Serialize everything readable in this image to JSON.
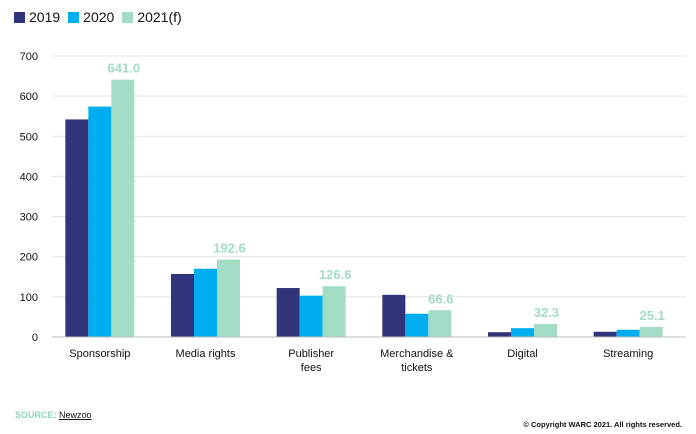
{
  "chart_data": {
    "type": "bar",
    "categories": [
      [
        "Sponsorship"
      ],
      [
        "Media rights"
      ],
      [
        "Publisher",
        "fees"
      ],
      [
        "Merchandise &",
        "tickets"
      ],
      [
        "Digital"
      ],
      [
        "Streaming"
      ]
    ],
    "series": [
      {
        "name": "2019",
        "color": "#31347a",
        "values": [
          542,
          157,
          122,
          105,
          12,
          13
        ]
      },
      {
        "name": "2020",
        "color": "#00adef",
        "values": [
          574,
          170,
          103,
          58,
          22,
          18
        ]
      },
      {
        "name": "2021(f)",
        "color": "#a2dcc5",
        "values": [
          641.0,
          192.6,
          126.6,
          66.6,
          32.3,
          25.1
        ]
      }
    ],
    "data_labels": [
      "641.0",
      "192.6",
      "126.6",
      "66.6",
      "32.3",
      "25.1"
    ],
    "data_label_color": "#a2dcc5",
    "yticks": [
      "0",
      "100",
      "200",
      "300",
      "400",
      "500",
      "600",
      "700"
    ],
    "ylim": [
      0,
      700
    ],
    "grid": true,
    "legend_position": "top-left"
  },
  "footer": {
    "source_label": "SOURCE:",
    "source_value": "Newzoo",
    "copyright": "© Copyright WARC 2021. All rights reserved."
  }
}
